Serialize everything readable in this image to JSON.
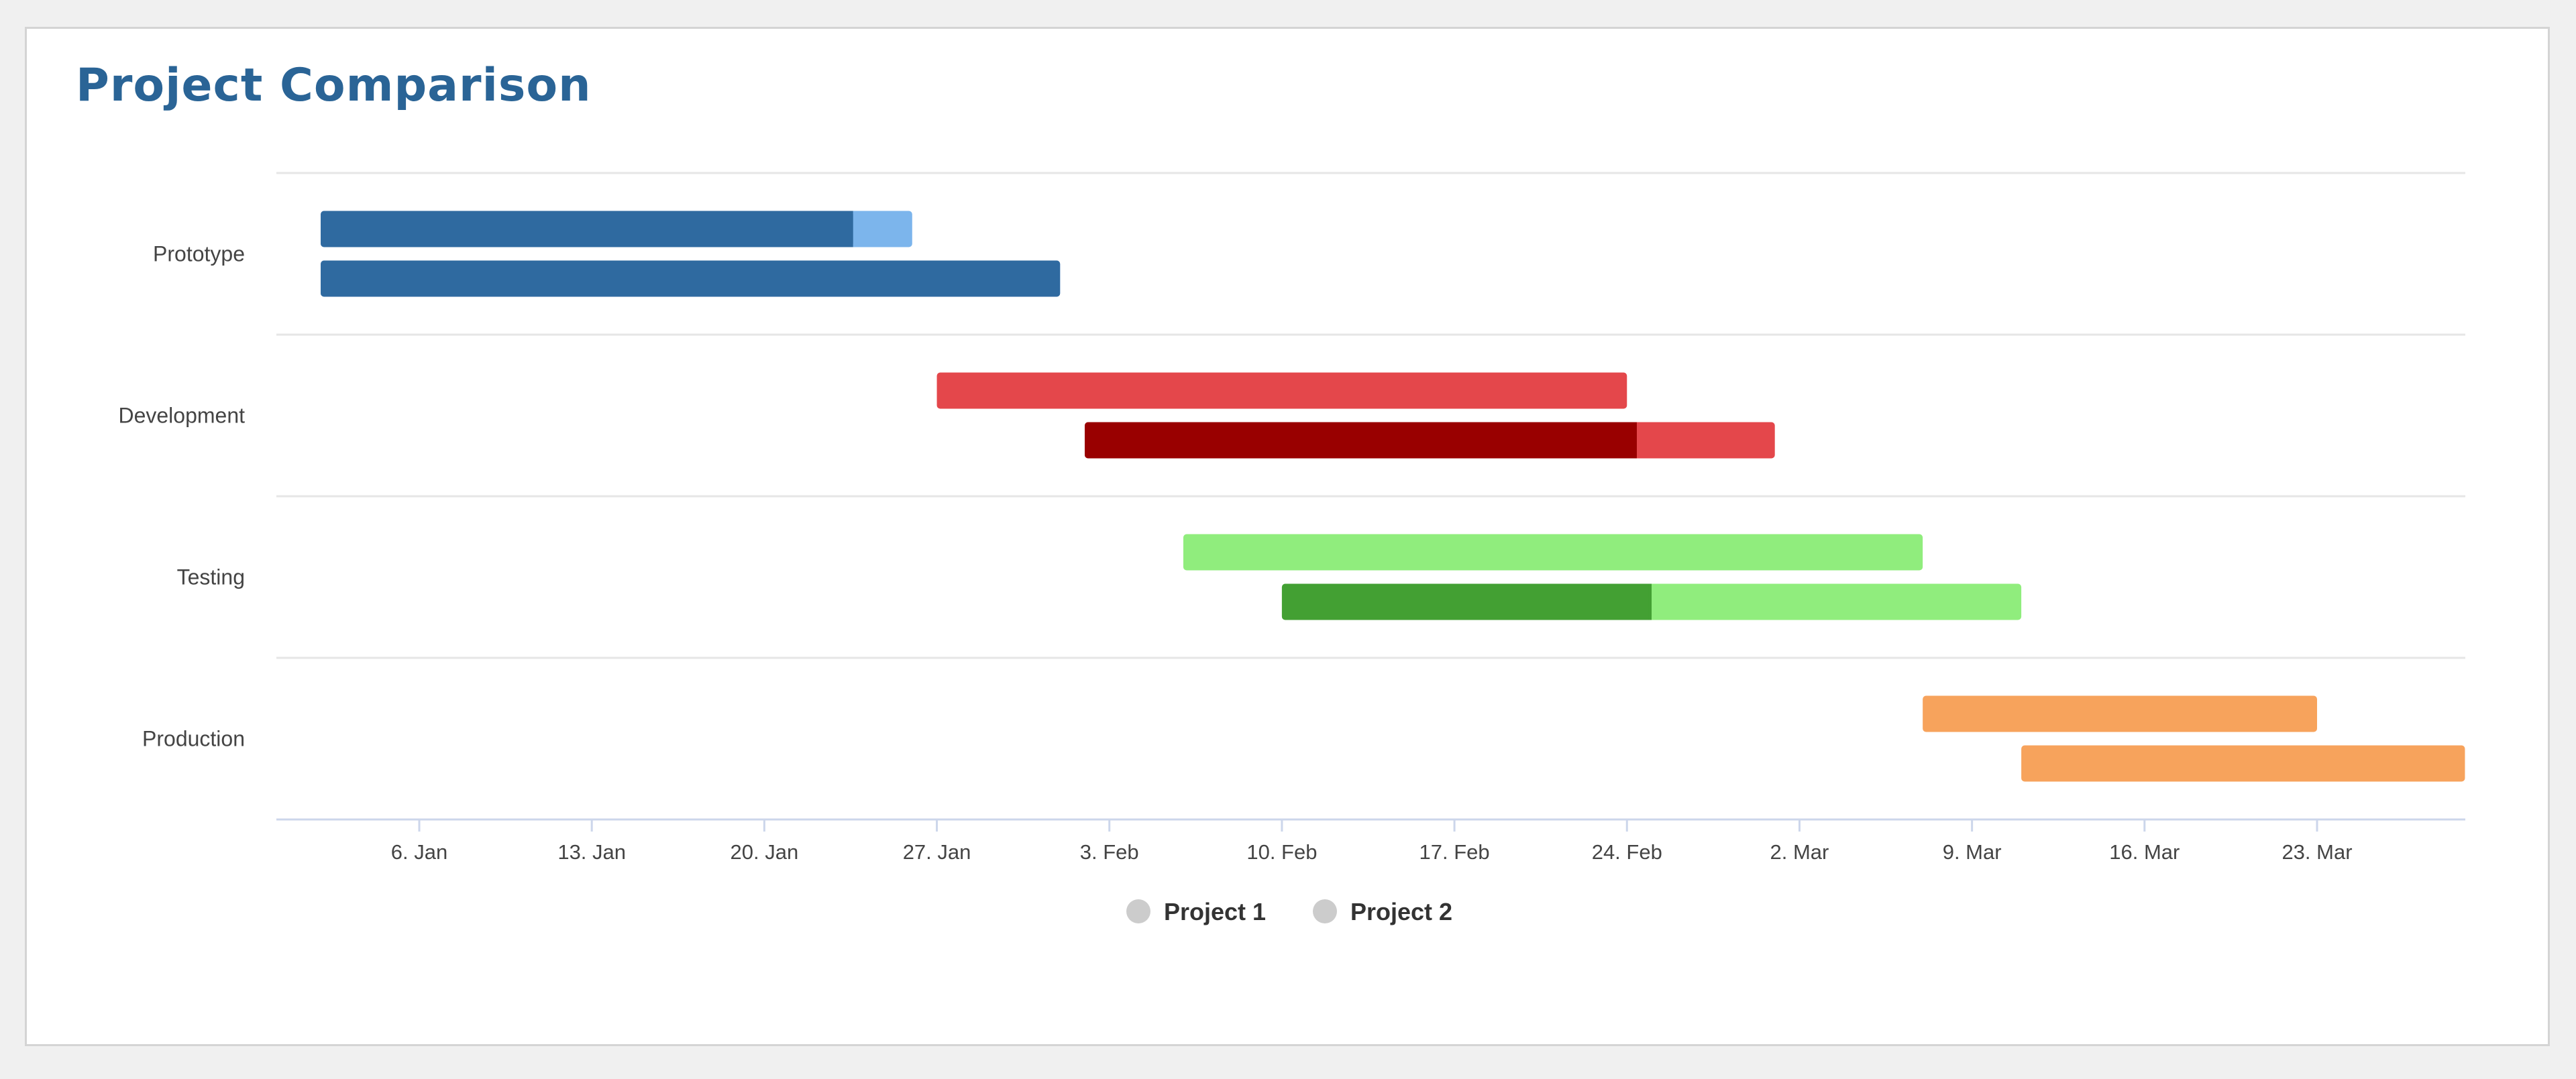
{
  "title": "Project Comparison",
  "chart_data": {
    "type": "gantt",
    "title": "Project Comparison",
    "x_axis": {
      "type": "date",
      "min": "2020-01-01",
      "max": "2020-03-29",
      "ticks": [
        {
          "date": "2020-01-06",
          "label": "6. Jan"
        },
        {
          "date": "2020-01-13",
          "label": "13. Jan"
        },
        {
          "date": "2020-01-20",
          "label": "20. Jan"
        },
        {
          "date": "2020-01-27",
          "label": "27. Jan"
        },
        {
          "date": "2020-02-03",
          "label": "3. Feb"
        },
        {
          "date": "2020-02-10",
          "label": "10. Feb"
        },
        {
          "date": "2020-02-17",
          "label": "17. Feb"
        },
        {
          "date": "2020-02-24",
          "label": "24. Feb"
        },
        {
          "date": "2020-03-02",
          "label": "2. Mar"
        },
        {
          "date": "2020-03-09",
          "label": "9. Mar"
        },
        {
          "date": "2020-03-16",
          "label": "16. Mar"
        },
        {
          "date": "2020-03-23",
          "label": "23. Mar"
        }
      ]
    },
    "categories": [
      "Prototype",
      "Development",
      "Testing",
      "Production"
    ],
    "series": [
      {
        "name": "Project 1",
        "tasks": [
          {
            "category": "Prototype",
            "start": "2020-01-02",
            "end": "2020-01-26",
            "completed": 0.9,
            "color": "#7cb5ec",
            "done_color": "#2f6aa0"
          },
          {
            "category": "Development",
            "start": "2020-01-27",
            "end": "2020-02-24",
            "completed": 0,
            "color": "#e4474b",
            "done_color": "#990000"
          },
          {
            "category": "Testing",
            "start": "2020-02-06",
            "end": "2020-03-07",
            "completed": 0,
            "color": "#90ed7d",
            "done_color": "#43a033"
          },
          {
            "category": "Production",
            "start": "2020-03-07",
            "end": "2020-03-23",
            "completed": 0,
            "color": "#f7a35c",
            "done_color": "#d97f2f"
          }
        ]
      },
      {
        "name": "Project 2",
        "tasks": [
          {
            "category": "Prototype",
            "start": "2020-01-02",
            "end": "2020-02-01",
            "completed": 1,
            "color": "#7cb5ec",
            "done_color": "#2f6aa0"
          },
          {
            "category": "Development",
            "start": "2020-02-02",
            "end": "2020-03-01",
            "completed": 0.8,
            "color": "#e4474b",
            "done_color": "#990000"
          },
          {
            "category": "Testing",
            "start": "2020-02-10",
            "end": "2020-03-11",
            "completed": 0.5,
            "color": "#90ed7d",
            "done_color": "#43a033"
          },
          {
            "category": "Production",
            "start": "2020-03-11",
            "end": "2020-03-29",
            "completed": 0,
            "color": "#f7a35c",
            "done_color": "#d97f2f"
          }
        ]
      }
    ],
    "legend": {
      "position": "bottom-center",
      "items": [
        {
          "label": "Project 1",
          "color": "#cccccc"
        },
        {
          "label": "Project 2",
          "color": "#cccccc"
        }
      ]
    },
    "grid": true
  }
}
